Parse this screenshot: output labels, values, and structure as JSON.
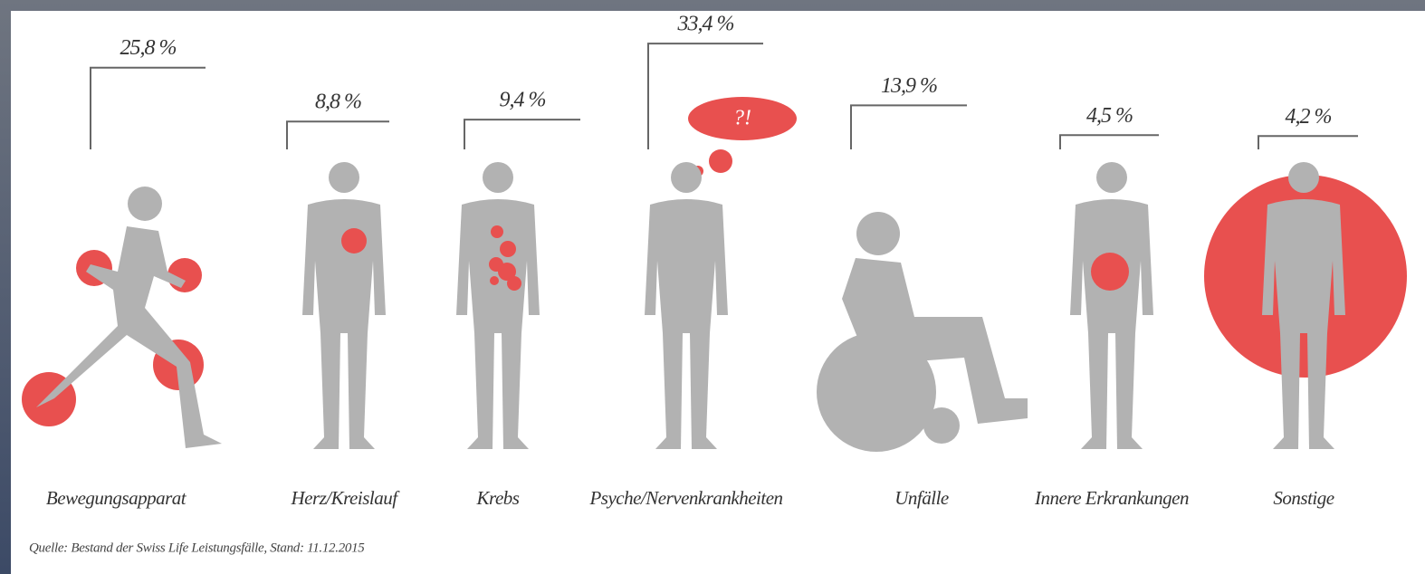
{
  "chart_data": {
    "type": "pictogram",
    "categories": [
      "Bewegungsapparat",
      "Herz/Kreislauf",
      "Krebs",
      "Psyche/Nervenkrankheiten",
      "Unfälle",
      "Innere Erkrankungen",
      "Sonstige"
    ],
    "values": [
      25.8,
      8.8,
      9.4,
      33.4,
      13.9,
      4.5,
      4.2
    ],
    "value_labels": [
      "25,8 %",
      "8,8 %",
      "9,4 %",
      "33,4 %",
      "13,9 %",
      "4,5 %",
      "4,2 %"
    ],
    "color": "#666666",
    "source": "Quelle: Bestand der Swiss Life Leistungsfälle, Stand: 11.12.2015"
  }
}
